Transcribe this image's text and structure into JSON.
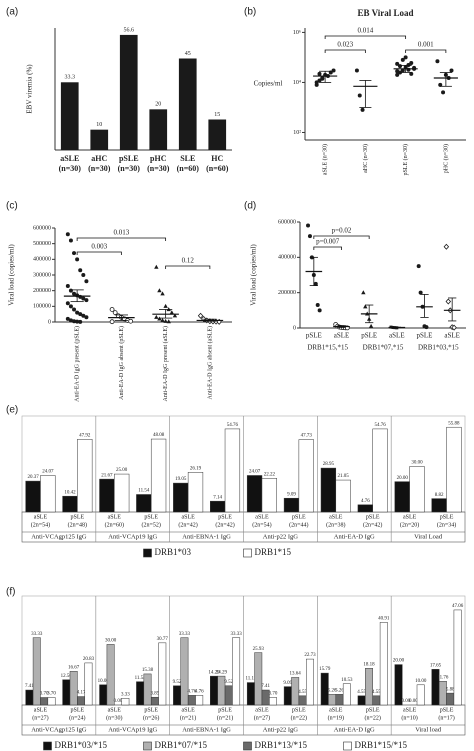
{
  "chart_data": [
    {
      "type": "bar",
      "panel_label": "(a)",
      "ylabel": "EBV viremia (%)",
      "color": "#1a1a1a",
      "categories": [
        [
          "aSLE",
          "(n=30)"
        ],
        [
          "aHC",
          "(n=30)"
        ],
        [
          "pSLE",
          "(n=30)"
        ],
        [
          "pHC",
          "(n=30)"
        ],
        [
          "SLE",
          "(n=60)"
        ],
        [
          "HC",
          "(n=60)"
        ]
      ],
      "values": [
        33.3,
        10,
        56.6,
        20,
        45,
        15
      ],
      "ylim": [
        0,
        60
      ]
    },
    {
      "type": "strip",
      "panel_label": "(b)",
      "title": "EB Viral Load",
      "ylabel": "Copies/ml",
      "log_scale": true,
      "color": "#1a1a1a",
      "categories": [
        "aSLE (n=30)",
        "aHC (n=30)",
        "pSLE (n=30)",
        "pHC (n=30)"
      ],
      "markers": [
        "dot",
        "dot",
        "dot",
        "dot"
      ],
      "points": [
        [
          8000,
          12000,
          15000,
          20000,
          18000,
          25000,
          30000,
          10000,
          22000,
          14000
        ],
        [
          30000,
          3000,
          800
        ],
        [
          20000,
          25000,
          30000,
          40000,
          50000,
          60000,
          35000,
          28000,
          45000,
          80000,
          100000,
          32000,
          22000,
          38000,
          55000
        ],
        [
          70000,
          8000,
          4000,
          20000,
          15000,
          30000
        ]
      ],
      "means": [
        18000,
        7000,
        35000,
        15000
      ],
      "lower": [
        10000,
        1000,
        25000,
        7000
      ],
      "upper": [
        28000,
        12000,
        48000,
        25000
      ],
      "annotations": [
        "0.014",
        "0.023",
        "0.001"
      ],
      "ylim": [
        50,
        1500000
      ],
      "yticks": [
        {
          "value": 100,
          "label": "10²"
        },
        {
          "value": 10000,
          "label": "10⁴"
        },
        {
          "value": 1000000,
          "label": "10⁶"
        }
      ]
    },
    {
      "type": "strip",
      "panel_label": "(c)",
      "ylabel": "Viral load (copies/ml)",
      "color": "#1a1a1a",
      "categories": [
        "Anti-EA-D IgG present (pSLE)",
        "Anti-EA-D IgG absent (pSLE)",
        "Anti-EA-D IgG present (aSLE)",
        "Anti-EA-D IgG absent (aSLE)"
      ],
      "markers": [
        "dot",
        "circle",
        "triangle",
        "diamond"
      ],
      "points": [
        [
          560000,
          520000,
          440000,
          400000,
          330000,
          300000,
          260000,
          230000,
          200000,
          180000,
          170000,
          160000,
          150000,
          140000,
          120000,
          100000,
          80000,
          60000,
          50000,
          40000,
          30000,
          20000,
          10000,
          5000,
          2000,
          1000
        ],
        [
          80000,
          60000,
          40000,
          30000,
          20000,
          10000,
          5000,
          2000
        ],
        [
          350000,
          200000,
          180000,
          100000,
          80000,
          60000,
          40000,
          30000,
          20000,
          10000,
          5000,
          2000
        ],
        [
          40000,
          20000,
          10000,
          5000,
          3000,
          2000,
          1000
        ]
      ],
      "means": [
        165000,
        28000,
        50000,
        10000
      ],
      "lower": [
        130000,
        10000,
        25000,
        5000
      ],
      "upper": [
        205000,
        45000,
        80000,
        18000
      ],
      "annotations": [
        "0.013",
        "0.003",
        "0.12"
      ],
      "ylim": [
        0,
        600000
      ],
      "yticks": [
        0,
        100000,
        200000,
        300000,
        400000,
        500000,
        600000
      ]
    },
    {
      "type": "strip",
      "panel_label": "(d)",
      "ylabel": "Viral load (copies/ml)",
      "color": "#1a1a1a",
      "categories": [
        "pSLE",
        "aSLE",
        "pSLE",
        "aSLE",
        "pSLE",
        "aSLE"
      ],
      "group_labels": [
        "DRB1*15,*15",
        "DRB1*07,*15",
        "DRB1*03,*15"
      ],
      "markers": [
        "dot",
        "circle",
        "triangle",
        "square",
        "dot",
        "diamond"
      ],
      "points": [
        [
          580000,
          520000,
          400000,
          300000,
          250000,
          130000,
          100000
        ],
        [
          20000,
          10000,
          5000,
          3000,
          2000,
          1000,
          500
        ],
        [
          200000,
          120000,
          80000,
          50000,
          10000
        ],
        [
          5000,
          3000,
          2000,
          1000
        ],
        [
          350000,
          200000,
          120000,
          10000,
          5000
        ],
        [
          460000,
          150000,
          100000,
          5000,
          2000
        ]
      ],
      "means": [
        320000,
        8000,
        80000,
        3000,
        120000,
        100000
      ],
      "lower": [
        240000,
        3000,
        30000,
        1500,
        60000,
        40000
      ],
      "upper": [
        400000,
        13000,
        130000,
        4500,
        190000,
        170000
      ],
      "annotations": [
        "p=0.02",
        "p=0.007"
      ],
      "ylim": [
        0,
        600000
      ],
      "yticks": [
        0,
        200000,
        400000,
        600000
      ]
    },
    {
      "type": "groupbar",
      "panel_label": "(e)",
      "categories": [
        [
          "aSLE",
          "(2n=54)"
        ],
        [
          "pSLE",
          "(2n=48)"
        ],
        [
          "aSLE",
          "(2n=60)"
        ],
        [
          "pSLE",
          "(2n=52)"
        ],
        [
          "aSLE",
          "(2n=42)"
        ],
        [
          "pSLE",
          "(2n=42)"
        ],
        [
          "aSLE",
          "(2n=54)"
        ],
        [
          "pSLE",
          "(2n=44)"
        ],
        [
          "aSLE",
          "(2n=38)"
        ],
        [
          "pSLE",
          "(2n=42)"
        ],
        [
          "aSLE",
          "(2n=20)"
        ],
        [
          "pSLE",
          "(2n=34)"
        ]
      ],
      "group_labels": [
        "Anti-VCAgp125 IgG",
        "Anti-VCAp19 IgG",
        "Anti-EBNA-1 IgG",
        "Anti-p22 IgG",
        "Anti-EA-D IgG",
        "Viral Load"
      ],
      "series": [
        {
          "name": "DRB1*03",
          "color": "#111111",
          "values": [
            20.37,
            10.42,
            21.67,
            11.54,
            19.05,
            7.14,
            24.07,
            9.09,
            28.95,
            4.76,
            20,
            8.82
          ],
          "value_labels": [
            "20.37",
            "10.42",
            "21.67",
            "11.54",
            "19.05",
            "7.14",
            "24.07",
            "9.09",
            "28.95",
            "4.76",
            "20.00",
            "8.82"
          ]
        },
        {
          "name": "DRB1*15",
          "color": "#ffffff",
          "values": [
            24.07,
            47.92,
            25,
            48.08,
            26.19,
            54.76,
            22.22,
            47.73,
            21.05,
            54.76,
            30,
            55.88
          ],
          "value_labels": [
            "24.07",
            "47.92",
            "25.00",
            "48.08",
            "26.19",
            "54.76",
            "22.22",
            "47.73",
            "21.05",
            "54.76",
            "30.00",
            "55.88"
          ]
        }
      ],
      "ylim": [
        0,
        58
      ]
    },
    {
      "type": "groupbar",
      "panel_label": "(f)",
      "categories": [
        [
          "aSLE",
          "(n=27)"
        ],
        [
          "pSLE",
          "(n=24)"
        ],
        [
          "aSLE",
          "(n=30)"
        ],
        [
          "pSLE",
          "(n=26)"
        ],
        [
          "aSLE",
          "(n=21)"
        ],
        [
          "pSLE",
          "(n=21)"
        ],
        [
          "aSLE",
          "(n=27)"
        ],
        [
          "pSLE",
          "(n=22)"
        ],
        [
          "aSLE",
          "(n=19)"
        ],
        [
          "pSLE",
          "(n=22)"
        ],
        [
          "aSLE",
          "(n=10)"
        ],
        [
          "pSLE",
          "(n=17)"
        ]
      ],
      "group_labels": [
        "Anti-VCAgp125 IgG",
        "Anti-VCAp19 IgG",
        "Anti-EBNA-1 IgG",
        "Anti-p22 IgG",
        "Anti-EA-D IgG",
        "Viral load"
      ],
      "series": [
        {
          "name": "DRB1*03/*15",
          "color": "#111111",
          "values": [
            7.41,
            12.5,
            10,
            11.54,
            9.52,
            14.29,
            11.11,
            9.09,
            15.79,
            4.55,
            20,
            17.65
          ],
          "value_labels": [
            "7.41",
            "12.50",
            "10.00",
            "11.54",
            "9.52",
            "14.29",
            "11.11",
            "9.09",
            "15.79",
            "4.55",
            "20.00",
            "17.65"
          ]
        },
        {
          "name": "DRB1*07/*15",
          "color": "#b0b0b0",
          "values": [
            33.33,
            16.67,
            30,
            15.38,
            33.33,
            14.29,
            25.93,
            13.64,
            5.26,
            18.18,
            0,
            11.76
          ],
          "value_labels": [
            "33.33",
            "16.67",
            "30.00",
            "15.38",
            "33.33",
            "14.29",
            "25.93",
            "13.64",
            "5.26",
            "18.18",
            "0.00",
            "11.76"
          ]
        },
        {
          "name": "DRB1*13/*15",
          "color": "#6a6a6a",
          "values": [
            3.7,
            4.17,
            0,
            3.85,
            4.76,
            9.52,
            7.41,
            4.55,
            5.26,
            4.55,
            0,
            5.88
          ],
          "value_labels": [
            "3.70",
            "4.17",
            "0.00",
            "3.85",
            "4.76",
            "9.52",
            "7.41",
            "4.55",
            "5.26",
            "4.55",
            "0.00",
            "5.88"
          ]
        },
        {
          "name": "DRB1*15/*15",
          "color": "#ffffff",
          "values": [
            3.7,
            20.83,
            3.33,
            30.77,
            4.76,
            33.33,
            3.7,
            22.73,
            10.53,
            40.91,
            10,
            47.06
          ],
          "value_labels": [
            "3.70",
            "20.83",
            "3.33",
            "30.77",
            "4.76",
            "33.33",
            "3.70",
            "22.73",
            "10.53",
            "40.91",
            "10.00",
            "47.06"
          ]
        }
      ],
      "ylim": [
        0,
        50
      ]
    }
  ]
}
